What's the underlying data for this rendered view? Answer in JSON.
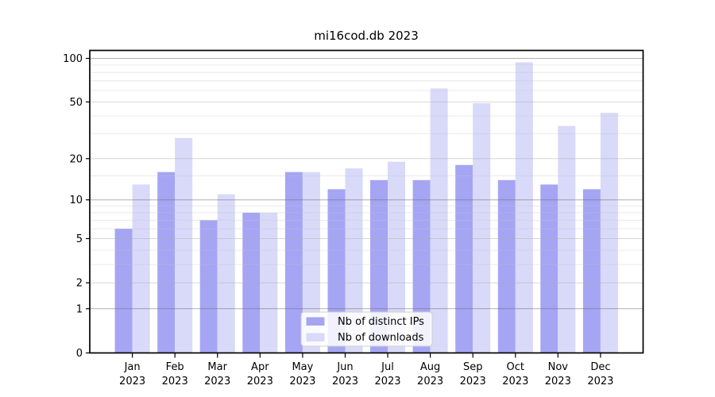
{
  "chart_data": {
    "type": "bar",
    "title": "mi16cod.db 2023",
    "categories": [
      "Jan",
      "Feb",
      "Mar",
      "Apr",
      "May",
      "Jun",
      "Jul",
      "Aug",
      "Sep",
      "Oct",
      "Nov",
      "Dec"
    ],
    "year_label": "2023",
    "series": [
      {
        "name": "Nb of distinct IPs",
        "color": "#a5a5f4",
        "values": [
          6,
          16,
          7,
          8,
          16,
          12,
          14,
          14,
          18,
          14,
          13,
          12
        ]
      },
      {
        "name": "Nb of downloads",
        "color": "#d9d9f9",
        "values": [
          13,
          28,
          11,
          8,
          16,
          17,
          19,
          62,
          49,
          94,
          34,
          42
        ]
      }
    ],
    "yscale": "log1p",
    "ylim": [
      0,
      113
    ],
    "y_ticks": [
      0,
      1,
      2,
      5,
      10,
      20,
      50,
      100
    ],
    "y_minor_ticks": [
      3,
      4,
      6,
      7,
      8,
      9,
      15,
      30,
      40,
      60,
      70,
      80,
      90
    ],
    "grid": true,
    "legend_position": "lower center",
    "colors": {
      "spine": "#000000",
      "grid_major": "#6e6e6e",
      "grid_labeled": "#b9b9b9",
      "grid_minor": "#c3c3c3",
      "legend_border": "#cfcfcf"
    }
  }
}
